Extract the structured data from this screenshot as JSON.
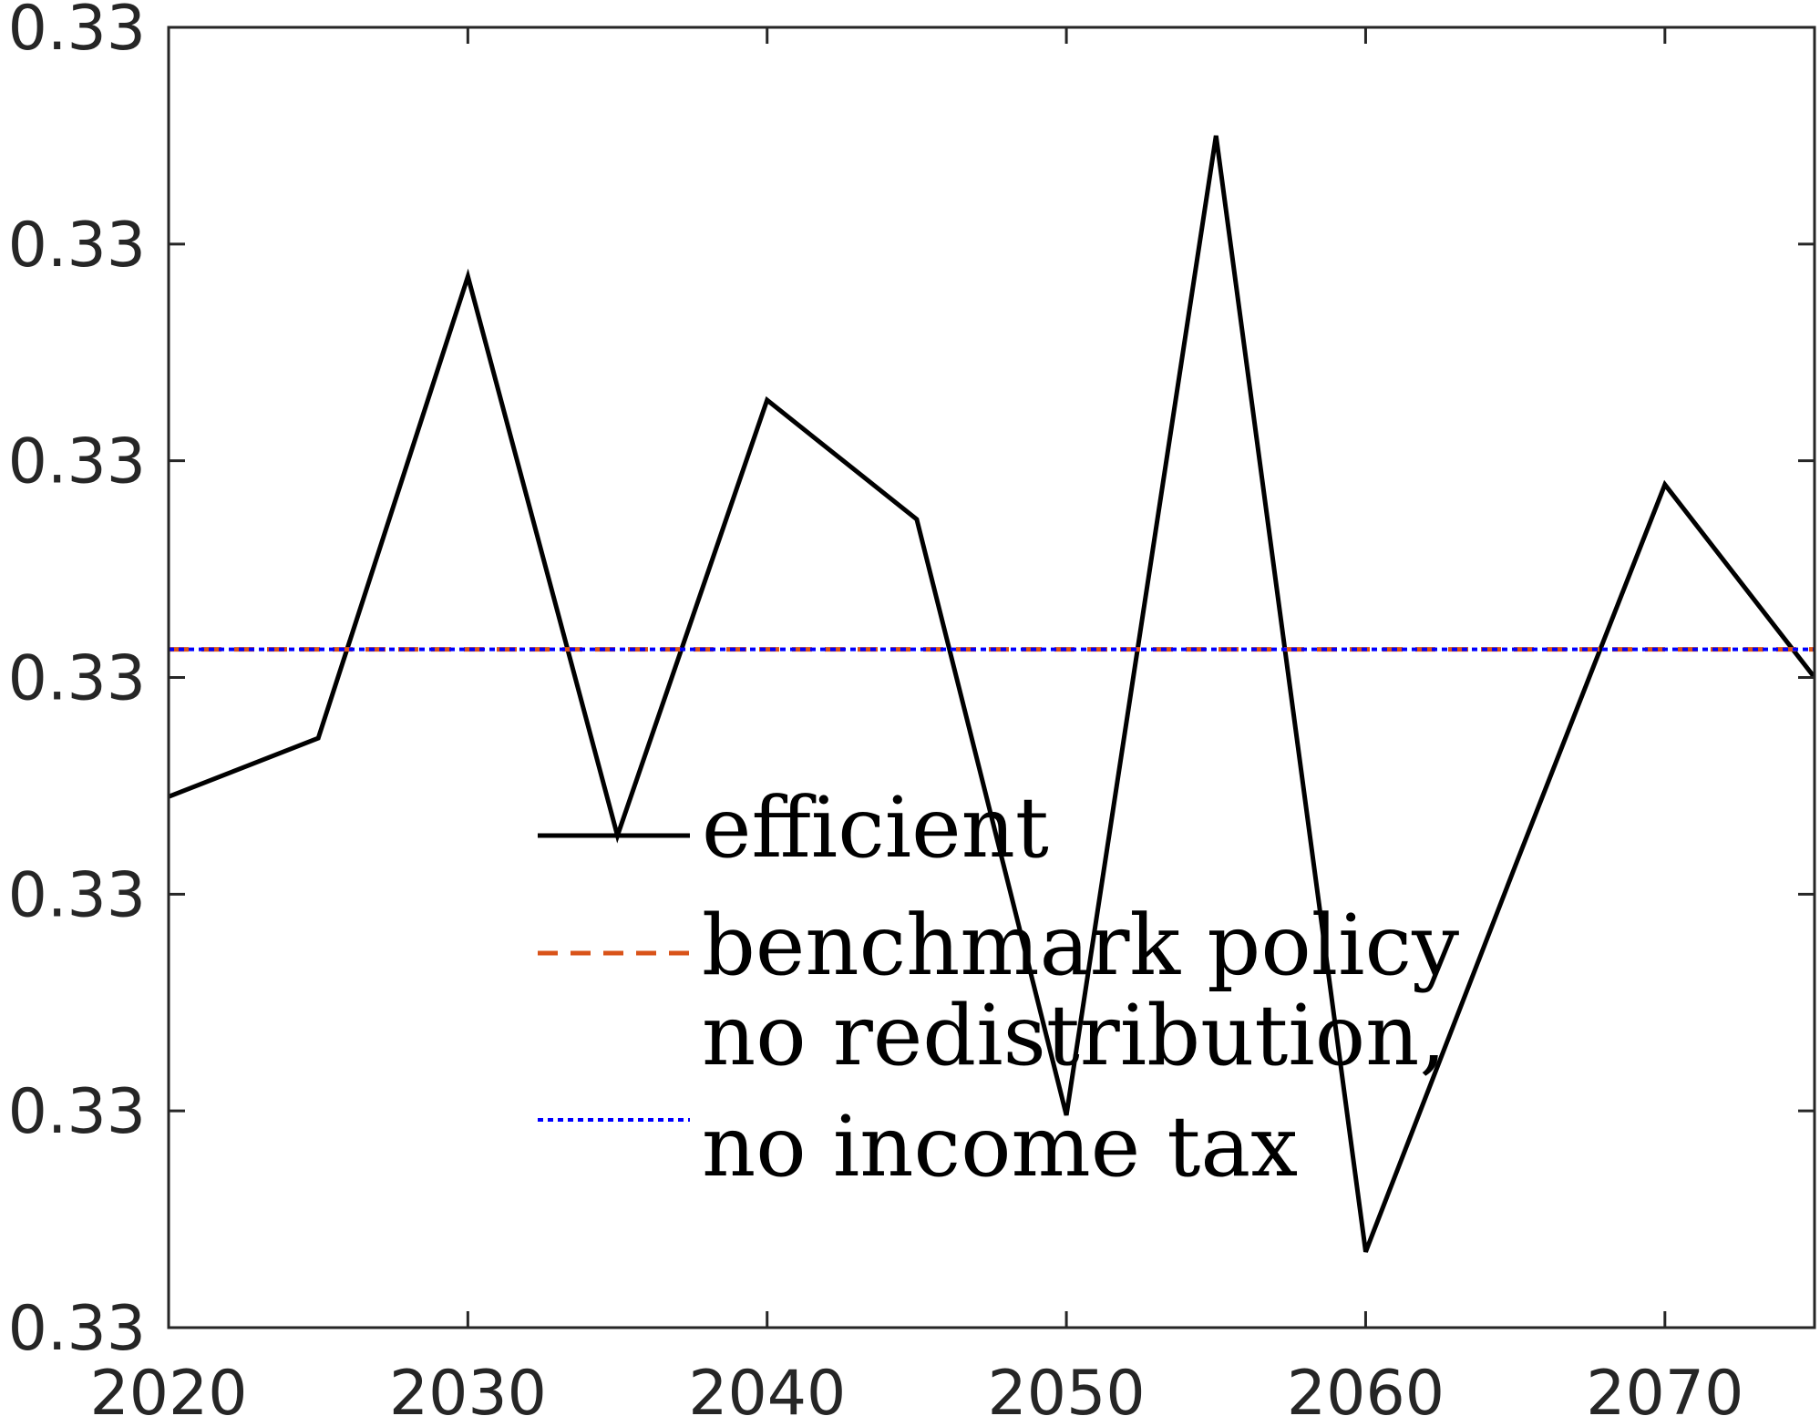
{
  "chart_data": {
    "type": "line",
    "x": [
      2020,
      2025,
      2030,
      2035,
      2040,
      2045,
      2050,
      2055,
      2060,
      2065,
      2070,
      2075
    ],
    "xlim": [
      2020,
      2075
    ],
    "ylim": [
      0,
      6
    ],
    "x_ticks": [
      2020,
      2030,
      2040,
      2050,
      2060,
      2070
    ],
    "y_ticks": [
      {
        "value": 0,
        "label": "0.33"
      },
      {
        "value": 1,
        "label": "0.33"
      },
      {
        "value": 2,
        "label": "0.33"
      },
      {
        "value": 3,
        "label": "0.33"
      },
      {
        "value": 4,
        "label": "0.33"
      },
      {
        "value": 5,
        "label": "0.33"
      },
      {
        "value": 6,
        "label": "0.33"
      }
    ],
    "y_note": "y values are positions relative to the axis ticks (all tick labels print 0.33)",
    "series": [
      {
        "name": "efficient",
        "style": "solid",
        "color": "#000000",
        "values": [
          2.45,
          2.72,
          4.85,
          2.27,
          4.28,
          3.73,
          0.98,
          5.5,
          0.35,
          2.13,
          3.89,
          3.0
        ]
      },
      {
        "name": "benchmark policy",
        "style": "dashed",
        "color": "#d95319",
        "values": [
          3.13,
          3.13,
          3.13,
          3.13,
          3.13,
          3.13,
          3.13,
          3.13,
          3.13,
          3.13,
          3.13,
          3.13
        ]
      },
      {
        "name": "no redistribution, no income tax",
        "style": "dotted",
        "color": "#0000ff",
        "values": [
          3.13,
          3.13,
          3.13,
          3.13,
          3.13,
          3.13,
          3.13,
          3.13,
          3.13,
          3.13,
          3.13,
          3.13
        ]
      }
    ],
    "legend": {
      "placement": "center",
      "entries": [
        {
          "lines": [
            "efficient"
          ]
        },
        {
          "lines": [
            "benchmark policy"
          ]
        },
        {
          "lines": [
            "no redistribution,",
            "no income tax"
          ]
        }
      ]
    },
    "grid": false
  }
}
